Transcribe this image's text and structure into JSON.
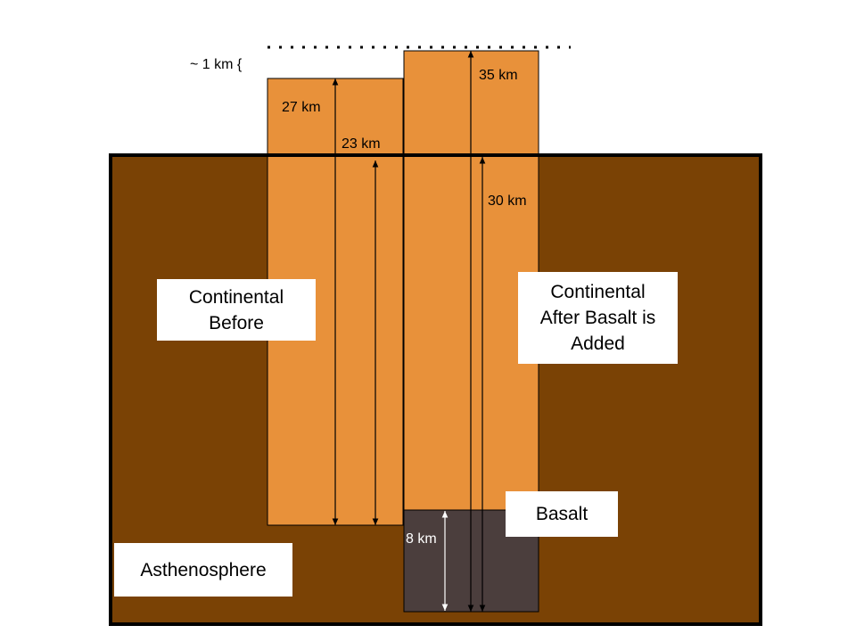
{
  "colors": {
    "asthenosphere": "#7a4205",
    "continental_crust": "#e8913a",
    "basalt": "#4b3e3d",
    "outline": "#000000"
  },
  "labels": {
    "approx_1km": "~ 1 km {",
    "km_27": "27 km",
    "km_23": "23 km",
    "km_35": "35 km",
    "km_30": "30 km",
    "km_8": "8 km",
    "continental_before_line1": "Continental",
    "continental_before_line2": "Before",
    "continental_after_line1": "Continental",
    "continental_after_line2": "After Basalt is",
    "continental_after_line3": "Added",
    "basalt": "Basalt",
    "asthenosphere": "Asthenosphere"
  }
}
